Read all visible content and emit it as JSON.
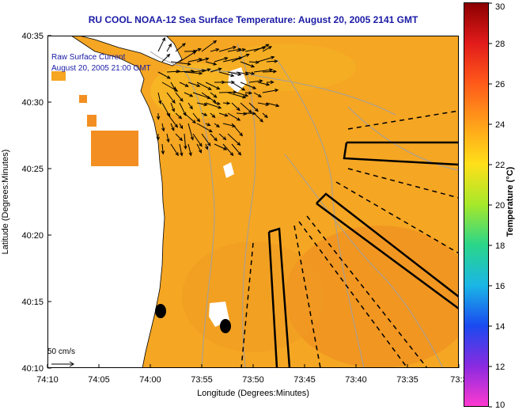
{
  "title": "RU COOL  NOAA-12  Sea Surface Temperature:  August 20, 2005 2141 GMT",
  "map": {
    "legend_line1": "Raw Surface Current",
    "legend_line2": "August 20, 2005 21:00 GMT",
    "scale_label": "50 cm/s",
    "xlabel": "Longitude (Degrees:Minutes)",
    "ylabel": "Latitude (Degrees:Minutes)",
    "x_ticks": [
      "74:10",
      "74:05",
      "74:00",
      "73:55",
      "73:50",
      "73:45",
      "73:40",
      "73:35",
      "73:3"
    ],
    "y_ticks": [
      "40:35",
      "40:30",
      "40:25",
      "40:20",
      "40:15",
      "40:10"
    ],
    "colors": {
      "ocean": "#f5a623",
      "land": "#ffffff",
      "vector": "#000000",
      "contour": "#a0a0a0"
    }
  },
  "colorbar": {
    "label": "Temperature (°C)",
    "min": 10,
    "max": 30,
    "ticks": [
      "30",
      "28",
      "26",
      "24",
      "22",
      "20",
      "18",
      "16",
      "14",
      "12",
      "10"
    ]
  }
}
